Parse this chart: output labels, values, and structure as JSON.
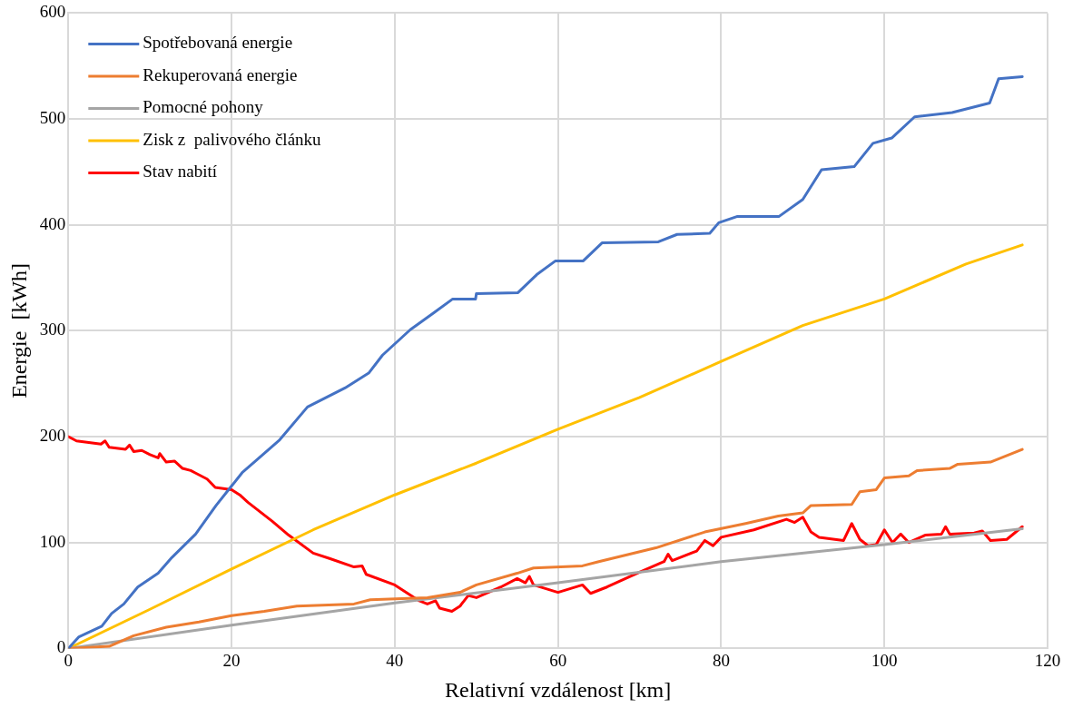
{
  "chart_data": {
    "type": "line",
    "xlabel": "Relativní vzdálenost [km]",
    "ylabel": "Energie  [kWh]",
    "xlim": [
      0,
      120
    ],
    "xticks": [
      0,
      20,
      40,
      60,
      80,
      100,
      120
    ],
    "ylim": [
      0,
      600
    ],
    "yticks": [
      0,
      100,
      200,
      300,
      400,
      500,
      600
    ],
    "grid": true,
    "legend": "top left",
    "marker": "none",
    "line_style": "solid",
    "series": [
      {
        "name": "Spotřebovaná energie",
        "color": "#4472c4",
        "x": [
          0,
          1.3,
          4.1,
          5.3,
          6.8,
          8.5,
          11,
          12.7,
          15.6,
          18.1,
          21.3,
          25.9,
          29.3,
          33.9,
          36.8,
          38.5,
          41.9,
          44.8,
          47.1,
          49.9,
          50,
          55.1,
          57.4,
          59.7,
          63.1,
          65.4,
          72.3,
          74.6,
          78.6,
          79.7,
          82,
          87.1,
          90,
          92.3,
          96.3,
          98.6,
          100.9,
          103.7,
          108.3,
          112.9,
          114,
          116.9
        ],
        "values": [
          0,
          11,
          21,
          33,
          42,
          58,
          71,
          86,
          108,
          135,
          166,
          197,
          228,
          246,
          260,
          277,
          301,
          317,
          330,
          330,
          335,
          336,
          353,
          366,
          366,
          383,
          384,
          391,
          392,
          402,
          408,
          408,
          424,
          452,
          455,
          477,
          482,
          502,
          506,
          515,
          538,
          540
        ]
      },
      {
        "name": "Rekuperovaná energie",
        "color": "#ed7d31",
        "x": [
          0,
          5,
          8,
          12,
          16,
          20,
          24,
          28,
          35,
          37,
          44,
          48,
          50,
          55,
          57,
          63,
          65,
          72,
          78,
          83,
          87,
          90,
          91,
          96,
          97,
          99,
          100,
          103,
          104,
          108,
          109,
          113,
          116.9
        ],
        "values": [
          0,
          2,
          12,
          20,
          25,
          31,
          35,
          40,
          42,
          46,
          48,
          53,
          60,
          71,
          76,
          78,
          82,
          95,
          110,
          118,
          125,
          128,
          135,
          136,
          148,
          150,
          161,
          163,
          168,
          170,
          174,
          176,
          188
        ]
      },
      {
        "name": "Pomocné pohony",
        "color": "#a5a5a5",
        "x": [
          0,
          20,
          40,
          60,
          80,
          100,
          116.9
        ],
        "values": [
          0,
          22,
          43,
          62,
          82,
          98,
          113
        ]
      },
      {
        "name": "Zisk z  palivového článku",
        "color": "#ffc000",
        "x": [
          0,
          10,
          20,
          30,
          40,
          50,
          60,
          70,
          80,
          90,
          100,
          110,
          116.9
        ],
        "values": [
          0,
          37,
          75,
          112,
          145,
          175,
          207,
          237,
          271,
          305,
          330,
          363,
          381
        ]
      },
      {
        "name": "Stav nabití",
        "color": "#ff0000",
        "x": [
          0,
          1,
          4,
          4.5,
          5,
          7,
          7.5,
          8,
          9,
          10,
          11,
          11.2,
          12,
          13,
          14,
          15,
          15.5,
          17,
          18,
          20,
          21,
          22,
          25,
          27,
          30,
          32,
          35,
          36,
          36.5,
          40,
          43,
          44,
          45,
          45.5,
          47,
          48,
          49,
          50,
          53,
          55,
          56,
          56.5,
          57,
          60,
          63,
          64,
          66,
          70,
          73,
          73.5,
          74,
          77,
          78,
          79,
          80,
          84,
          88,
          89,
          90,
          91,
          92,
          95,
          96,
          97,
          98,
          99,
          100,
          101,
          102,
          103,
          105,
          107,
          107.5,
          108,
          111,
          112,
          113,
          115,
          116.9
        ],
        "values": [
          200,
          196,
          193,
          196,
          190,
          188,
          192,
          186,
          187,
          183,
          180,
          184,
          176,
          177,
          170,
          168,
          166,
          160,
          152,
          150,
          145,
          138,
          120,
          107,
          90,
          85,
          77,
          78,
          70,
          60,
          45,
          42,
          45,
          38,
          35,
          40,
          50,
          48,
          58,
          66,
          62,
          68,
          60,
          53,
          60,
          52,
          58,
          72,
          82,
          89,
          83,
          92,
          102,
          97,
          105,
          112,
          122,
          119,
          124,
          110,
          105,
          102,
          118,
          103,
          97,
          98,
          112,
          100,
          108,
          100,
          107,
          108,
          115,
          108,
          109,
          111,
          102,
          103,
          115
        ]
      }
    ]
  }
}
